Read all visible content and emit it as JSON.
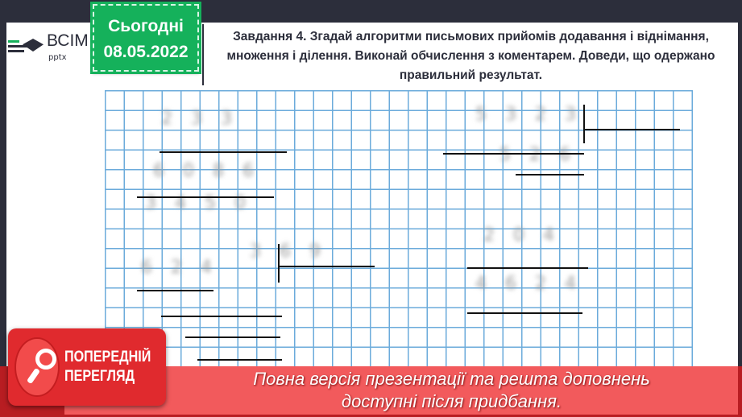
{
  "logo": {
    "name": "ВСІМ",
    "sub": "pptx"
  },
  "date_box": {
    "label": "Сьогодні",
    "date": "08.05.2022"
  },
  "task": {
    "text": "Завдання 4. Згадай алгоритми письмових прийомів додавання і віднімання, множення і ділення. Виконай обчислення з коментарем. Доведи, що одержано правильний результат."
  },
  "preview": {
    "badge_line1": "ПОПЕРЕДНІЙ",
    "badge_line2": "ПЕРЕГЛЯД",
    "message_line1": "Повна версія презентації та решта доповнень",
    "message_line2": "доступні після придбання.",
    "icon": "magnifier-icon"
  },
  "colors": {
    "background": "#2c2e3b",
    "date_green": "#15b15b",
    "banner_red": "#f25a5c",
    "grid_blue": "#3a8fd0"
  }
}
